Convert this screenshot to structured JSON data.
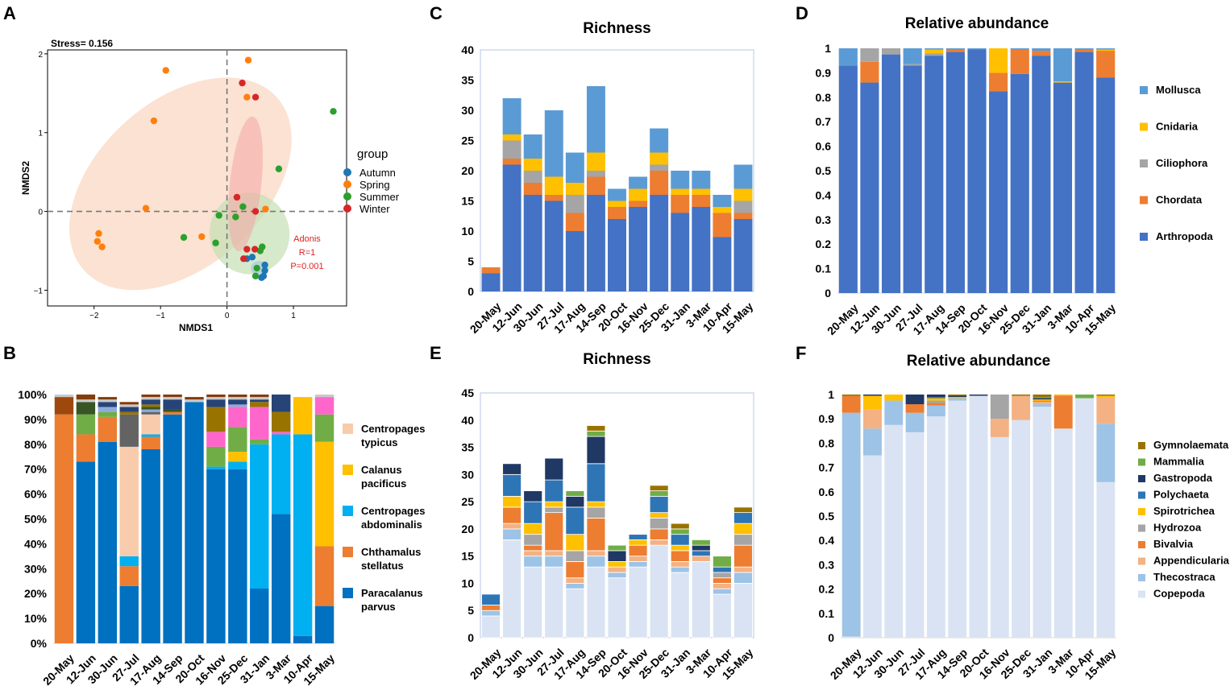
{
  "panels": {
    "A": "A",
    "B": "B",
    "C": "C",
    "D": "D",
    "E": "E",
    "F": "F"
  },
  "dates": [
    "20-May",
    "12-Jun",
    "30-Jun",
    "27-Jul",
    "17-Aug",
    "14-Sep",
    "20-Oct",
    "16-Nov",
    "25-Dec",
    "31-Jan",
    "3-Mar",
    "10-Apr",
    "15-May"
  ],
  "colors": {
    "Autumn": "#1f77b4",
    "Spring": "#ff7f0e",
    "Summer": "#2ca02c",
    "Winter": "#d62728",
    "Mollusca": "#5b9bd5",
    "Cnidaria": "#ffc000",
    "Ciliophora": "#a5a5a5",
    "Chordata": "#ed7d31",
    "Arthropoda": "#4472c4",
    "Paracalanus parvus": "#0070c0",
    "Chthamalus stellatus": "#ed7d31",
    "Centropages abdominalis": "#00b0f0",
    "Calanus pacificus": "#ffc000",
    "Centropages typicus": "#f8cbad",
    "Copepoda": "#dae3f3",
    "Thecostraca": "#9dc3e6",
    "Appendicularia": "#f4b183",
    "Bivalvia": "#ed7d31",
    "Hydrozoa": "#a5a5a5",
    "Spirotrichea": "#ffc000",
    "Polychaeta": "#2e75b6",
    "Gastropoda": "#1f3864",
    "Mammalia": "#70ad47",
    "Gymnolaemata": "#997300",
    "B_other1": "#9e480e",
    "B_other2": "#70ad47",
    "B_other3": "#636363",
    "B_other4": "#ff66cc",
    "B_other5": "#8faadc",
    "B_other6": "#375623",
    "B_other7": "#997300",
    "B_other8": "#264478",
    "B_other9": "#c9c9c9",
    "B_other10": "#843c0c"
  },
  "chart_data": [
    {
      "id": "A",
      "type": "scatter",
      "stress_label": "Stress= 0.156",
      "xlabel": "NMDS1",
      "ylabel": "NMDS2",
      "xlim": [
        -2.7,
        1.8
      ],
      "ylim": [
        -1.2,
        2.05
      ],
      "xticks": [
        -2,
        -1,
        0,
        1
      ],
      "yticks": [
        -1,
        0,
        1,
        2
      ],
      "xtick_labels": [
        "−2",
        "−1",
        "0",
        "1"
      ],
      "ytick_labels": [
        "−1",
        "0",
        "1",
        "2"
      ],
      "legend_title": "group",
      "groups": [
        "Autumn",
        "Spring",
        "Summer",
        "Winter"
      ],
      "annotation": [
        "Adonis",
        "R=1",
        "P=0.001"
      ],
      "points": {
        "Spring": [
          [
            -0.92,
            1.79
          ],
          [
            -1.1,
            1.15
          ],
          [
            0.32,
            1.92
          ],
          [
            0.3,
            1.45
          ],
          [
            -1.22,
            0.04
          ],
          [
            -1.93,
            -0.28
          ],
          [
            -1.95,
            -0.38
          ],
          [
            -1.88,
            -0.45
          ],
          [
            -0.38,
            -0.32
          ],
          [
            0.58,
            0.03
          ]
        ],
        "Winter": [
          [
            0.23,
            1.63
          ],
          [
            0.43,
            1.45
          ],
          [
            0.15,
            0.18
          ],
          [
            0.43,
            0.0
          ],
          [
            0.3,
            -0.48
          ],
          [
            0.42,
            -0.48
          ],
          [
            0.25,
            -0.6
          ]
        ],
        "Summer": [
          [
            1.6,
            1.27
          ],
          [
            0.78,
            0.54
          ],
          [
            -0.65,
            -0.33
          ],
          [
            -0.12,
            -0.05
          ],
          [
            -0.17,
            -0.4
          ],
          [
            0.24,
            0.06
          ],
          [
            0.13,
            -0.07
          ],
          [
            0.53,
            -0.45
          ],
          [
            0.5,
            -0.5
          ],
          [
            0.45,
            -0.72
          ],
          [
            0.43,
            -0.82
          ]
        ],
        "Autumn": [
          [
            0.3,
            -0.6
          ],
          [
            0.38,
            -0.58
          ],
          [
            0.57,
            -0.68
          ],
          [
            0.57,
            -0.75
          ],
          [
            0.55,
            -0.82
          ],
          [
            0.52,
            -0.84
          ]
        ]
      },
      "ellipses": {
        "Spring": {
          "cx": -0.7,
          "cy": 0.35,
          "rx": 1.95,
          "ry": 1.05,
          "angle_deg": 42
        },
        "Winter": {
          "cx": 0.28,
          "cy": 0.35,
          "rx": 1.02,
          "ry": 0.2,
          "angle_deg": 84
        },
        "Summer": {
          "cx": 0.34,
          "cy": -0.28,
          "rx": 0.6,
          "ry": 0.52,
          "angle_deg": 20
        },
        "Autumn": {
          "cx": 0.48,
          "cy": -0.72,
          "rx": 0.12,
          "ry": 0.09,
          "angle_deg": 0
        }
      }
    },
    {
      "id": "B",
      "type": "bar",
      "stacked": true,
      "ylim": [
        0,
        100
      ],
      "yticks": [
        0,
        10,
        20,
        30,
        40,
        50,
        60,
        70,
        80,
        90,
        100
      ],
      "ytick_labels": [
        "0%",
        "10%",
        "20%",
        "30%",
        "40%",
        "50%",
        "60%",
        "70%",
        "80%",
        "90%",
        "100%"
      ],
      "legend": [
        [
          "Centropages",
          "typicus"
        ],
        [
          "Calanus",
          "pacificus"
        ],
        [
          "Centropages",
          "abdominalis"
        ],
        [
          "Chthamalus",
          "stellatus"
        ],
        [
          "Paracalanus",
          "parvus"
        ]
      ],
      "legend_keys": [
        "Centropages typicus",
        "Calanus pacificus",
        "Centropages abdominalis",
        "Chthamalus stellatus",
        "Paracalanus parvus"
      ],
      "series_order": [
        "Paracalanus parvus",
        "Chthamalus stellatus",
        "Centropages abdominalis",
        "Calanus pacificus",
        "Centropages typicus",
        "B_other1",
        "B_other2",
        "B_other3",
        "B_other4",
        "B_other5",
        "B_other6",
        "B_other7",
        "B_other8",
        "B_other9",
        "B_other10"
      ],
      "series": {
        "Paracalanus parvus": [
          0,
          73,
          81,
          23,
          78,
          92,
          97,
          70,
          70,
          22,
          52,
          3,
          15
        ],
        "Chthamalus stellatus": [
          92,
          11,
          10,
          8,
          5,
          1,
          0,
          0,
          0,
          0,
          0,
          0,
          24
        ],
        "Centropages abdominalis": [
          0,
          0,
          0,
          4,
          1,
          0,
          0,
          1,
          3,
          58,
          32,
          81,
          0
        ],
        "Calanus pacificus": [
          0,
          0,
          0,
          0,
          0,
          0,
          0,
          0,
          4,
          0,
          0,
          15,
          42
        ],
        "Centropages typicus": [
          0,
          0,
          0,
          44,
          8,
          0,
          0,
          0,
          0,
          0,
          0,
          0,
          0
        ],
        "B_other1": [
          7,
          0,
          0,
          0,
          0,
          0,
          0,
          0,
          0,
          0,
          0,
          0,
          0
        ],
        "B_other2": [
          0,
          8,
          2,
          0,
          0,
          0,
          0,
          8,
          10,
          2,
          0,
          0,
          11
        ],
        "B_other3": [
          0,
          0,
          0,
          13,
          1,
          0,
          0,
          0,
          0,
          0,
          0,
          0,
          0
        ],
        "B_other4": [
          0,
          0,
          0,
          0,
          0,
          0,
          0,
          6,
          8,
          13,
          1,
          0,
          7
        ],
        "B_other5": [
          0,
          0,
          2,
          0,
          1,
          0,
          0,
          0,
          1,
          0,
          0,
          0,
          0
        ],
        "B_other6": [
          0,
          5,
          0,
          0,
          1,
          1,
          0,
          0,
          0,
          0,
          0,
          0,
          0
        ],
        "B_other7": [
          0,
          0,
          0,
          1,
          1,
          0,
          0,
          10,
          0,
          2,
          8,
          0,
          0
        ],
        "B_other8": [
          0,
          0,
          2,
          2,
          2,
          4,
          0,
          3,
          2,
          1,
          7,
          0,
          0
        ],
        "B_other9": [
          1,
          1,
          1,
          1,
          1,
          1,
          1,
          1,
          1,
          1,
          0,
          0,
          1
        ],
        "B_other10": [
          0,
          2,
          1,
          1,
          1,
          1,
          1,
          1,
          1,
          1,
          0,
          0,
          0
        ]
      }
    },
    {
      "id": "C",
      "type": "bar",
      "stacked": true,
      "title": "Richness",
      "ylim": [
        0,
        40
      ],
      "yticks": [
        0,
        5,
        10,
        15,
        20,
        25,
        30,
        35,
        40
      ],
      "legend": [],
      "series_order": [
        "Arthropoda",
        "Chordata",
        "Ciliophora",
        "Cnidaria",
        "Mollusca"
      ],
      "series": {
        "Arthropoda": [
          3,
          21,
          16,
          15,
          10,
          16,
          12,
          14,
          16,
          13,
          14,
          9,
          12
        ],
        "Chordata": [
          1,
          1,
          2,
          1,
          3,
          3,
          2,
          1,
          4,
          3,
          2,
          4,
          1
        ],
        "Ciliophora": [
          0,
          3,
          2,
          0,
          3,
          1,
          0,
          0,
          1,
          0,
          0,
          0,
          2
        ],
        "Cnidaria": [
          0,
          1,
          2,
          3,
          2,
          3,
          1,
          2,
          2,
          1,
          1,
          1,
          2
        ],
        "Mollusca": [
          0,
          6,
          4,
          11,
          5,
          11,
          2,
          2,
          4,
          3,
          3,
          2,
          4
        ]
      }
    },
    {
      "id": "D",
      "type": "bar",
      "stacked": true,
      "title": "Relative abundance",
      "ylim": [
        0,
        1
      ],
      "yticks": [
        0,
        0.1,
        0.2,
        0.3,
        0.4,
        0.5,
        0.6,
        0.7,
        0.8,
        0.9,
        1
      ],
      "ytick_labels": [
        "0",
        "0.1",
        "0.2",
        "0.3",
        "0.4",
        "0.5",
        "0.6",
        "0.7",
        "0.8",
        "0.9",
        "1"
      ],
      "legend": [
        "Mollusca",
        "Cnidaria",
        "Ciliophora",
        "Chordata",
        "Arthropoda"
      ],
      "series_order": [
        "Arthropoda",
        "Chordata",
        "Ciliophora",
        "Cnidaria",
        "Mollusca"
      ],
      "series": {
        "Arthropoda": [
          0.93,
          0.86,
          0.975,
          0.93,
          0.97,
          0.985,
          0.995,
          0.825,
          0.895,
          0.97,
          0.86,
          0.985,
          0.88
        ],
        "Chordata": [
          0,
          0.085,
          0,
          0,
          0,
          0.01,
          0,
          0.075,
          0.1,
          0.02,
          0,
          0.01,
          0.11
        ],
        "Ciliophora": [
          0,
          0.055,
          0.025,
          0.005,
          0.01,
          0,
          0,
          0,
          0,
          0,
          0,
          0,
          0
        ],
        "Cnidaria": [
          0,
          0,
          0,
          0,
          0.015,
          0,
          0,
          0.1,
          0,
          0,
          0.005,
          0,
          0.005
        ],
        "Mollusca": [
          0.07,
          0,
          0,
          0.065,
          0.005,
          0.005,
          0.005,
          0,
          0.005,
          0.01,
          0.135,
          0.005,
          0.005
        ]
      }
    },
    {
      "id": "E",
      "type": "bar",
      "stacked": true,
      "title": "Richness",
      "ylim": [
        0,
        45
      ],
      "yticks": [
        0,
        5,
        10,
        15,
        20,
        25,
        30,
        35,
        40,
        45
      ],
      "legend": [],
      "series_order": [
        "Copepoda",
        "Thecostraca",
        "Appendicularia",
        "Bivalvia",
        "Hydrozoa",
        "Spirotrichea",
        "Polychaeta",
        "Gastropoda",
        "Mammalia",
        "Gymnolaemata"
      ],
      "series": {
        "Copepoda": [
          4,
          18,
          13,
          13,
          9,
          13,
          11,
          13,
          17,
          12,
          14,
          8,
          10
        ],
        "Thecostraca": [
          1,
          2,
          2,
          2,
          1,
          2,
          1,
          1,
          0,
          1,
          0,
          1,
          2
        ],
        "Appendicularia": [
          0,
          1,
          1,
          1,
          1,
          1,
          1,
          1,
          1,
          1,
          1,
          1,
          1
        ],
        "Bivalvia": [
          1,
          3,
          1,
          7,
          3,
          6,
          0,
          2,
          2,
          2,
          0,
          1,
          4
        ],
        "Hydrozoa": [
          0,
          0,
          2,
          1,
          2,
          2,
          0,
          0,
          2,
          0,
          0,
          1,
          2
        ],
        "Spirotrichea": [
          0,
          2,
          2,
          1,
          3,
          1,
          1,
          1,
          1,
          1,
          0,
          0,
          2
        ],
        "Polychaeta": [
          2,
          4,
          4,
          4,
          5,
          7,
          0,
          1,
          3,
          2,
          1,
          1,
          2
        ],
        "Gastropoda": [
          0,
          2,
          2,
          4,
          2,
          5,
          2,
          0,
          0,
          0,
          1,
          0,
          0
        ],
        "Mammalia": [
          0,
          0,
          0,
          0,
          1,
          1,
          1,
          0,
          1,
          1,
          1,
          2,
          0
        ],
        "Gymnolaemata": [
          0,
          0,
          0,
          0,
          0,
          1,
          0,
          0,
          1,
          1,
          0,
          0,
          1
        ]
      }
    },
    {
      "id": "F",
      "type": "bar",
      "stacked": true,
      "title": "Relative abundance",
      "ylim": [
        0,
        1
      ],
      "yticks": [
        0,
        0.1,
        0.2,
        0.3,
        0.4,
        0.5,
        0.6,
        0.7,
        0.8,
        0.9,
        1
      ],
      "ytick_labels": [
        "0",
        "0.1",
        "0.2",
        "0.3",
        "0.4",
        "0.5",
        "0.6",
        "0.7",
        "0.8",
        "0.9",
        "1"
      ],
      "legend": [
        "Gymnolaemata",
        "Mammalia",
        "Gastropoda",
        "Polychaeta",
        "Spirotrichea",
        "Hydrozoa",
        "Bivalvia",
        "Appendicularia",
        "Thecostraca",
        "Copepoda"
      ],
      "series_order": [
        "Copepoda",
        "Thecostraca",
        "Appendicularia",
        "Bivalvia",
        "Hydrozoa",
        "Spirotrichea",
        "Polychaeta",
        "Gastropoda",
        "Mammalia",
        "Gymnolaemata"
      ],
      "series": {
        "Copepoda": [
          0.005,
          0.75,
          0.875,
          0.845,
          0.91,
          0.975,
          0.995,
          0.825,
          0.895,
          0.95,
          0.86,
          0.985,
          0.64
        ],
        "Thecostraca": [
          0.92,
          0.11,
          0.1,
          0.08,
          0.045,
          0.01,
          0,
          0,
          0,
          0.01,
          0,
          0,
          0.24
        ],
        "Appendicularia": [
          0,
          0.08,
          0,
          0,
          0,
          0,
          0,
          0.075,
          0.1,
          0.01,
          0,
          0,
          0.11
        ],
        "Bivalvia": [
          0.07,
          0,
          0,
          0.035,
          0.01,
          0,
          0,
          0,
          0,
          0.005,
          0.135,
          0,
          0
        ],
        "Hydrozoa": [
          0,
          0,
          0,
          0,
          0.01,
          0,
          0,
          0.1,
          0,
          0,
          0,
          0,
          0
        ],
        "Spirotrichea": [
          0,
          0.055,
          0.025,
          0,
          0.01,
          0.005,
          0,
          0,
          0,
          0.005,
          0.005,
          0,
          0.005
        ],
        "Polychaeta": [
          0,
          0,
          0,
          0,
          0.005,
          0,
          0,
          0,
          0,
          0,
          0,
          0,
          0
        ],
        "Gastropoda": [
          0,
          0.005,
          0,
          0.04,
          0.01,
          0.005,
          0.005,
          0,
          0,
          0.005,
          0,
          0,
          0
        ],
        "Mammalia": [
          0,
          0,
          0,
          0,
          0,
          0,
          0,
          0,
          0,
          0.005,
          0,
          0.015,
          0
        ],
        "Gymnolaemata": [
          0.005,
          0,
          0,
          0,
          0,
          0.005,
          0,
          0,
          0.005,
          0.01,
          0,
          0,
          0.005
        ]
      }
    }
  ]
}
